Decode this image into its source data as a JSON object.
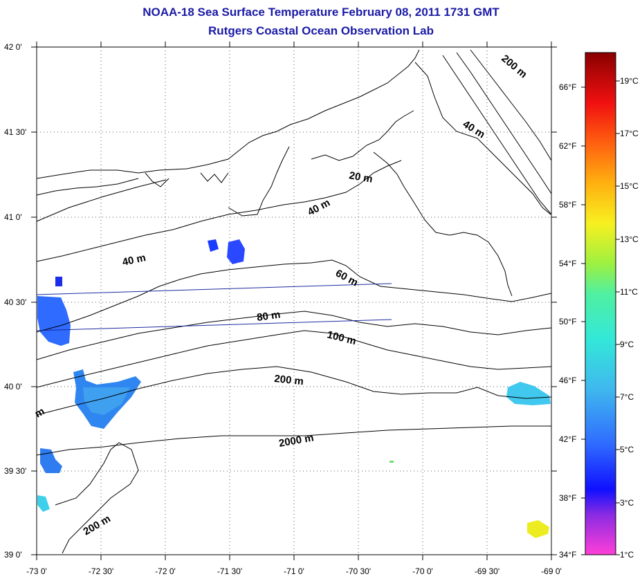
{
  "title": "NOAA-18 Sea Surface Temperature February 08, 2011 1731 GMT",
  "subtitle": "Rutgers Coastal Ocean Observation Lab",
  "axes": {
    "lat_labels": [
      "42 0'",
      "41 30'",
      "41 0'",
      "40 30'",
      "40 0'",
      "39 30'",
      "39 0'"
    ],
    "lon_labels": [
      "-73 0'",
      "-72 30'",
      "-72 0'",
      "-71 30'",
      "-71 0'",
      "-70 30'",
      "-70 0'",
      "-69 30'",
      "-69 0'"
    ]
  },
  "contour_labels": [
    "20 m",
    "40 m",
    "40 m",
    "40 m",
    "60 m",
    "80 m",
    "100 m",
    "200 m",
    "2000 m",
    "200 m",
    "200 m",
    "m"
  ],
  "colorbar": {
    "celsius": [
      "19°C",
      "17°C",
      "15°C",
      "13°C",
      "11°C",
      "9°C",
      "7°C",
      "5°C",
      "3°C",
      "1°C"
    ],
    "fahrenheit": [
      "66°F",
      "62°F",
      "58°F",
      "54°F",
      "50°F",
      "46°F",
      "42°F",
      "38°F",
      "34°F"
    ]
  },
  "colors": {
    "title": "#1a1aa6",
    "cold_patch": "#2a5cff",
    "cyan_patch": "#41c8ee",
    "yellow_patch": "#ecec20"
  }
}
